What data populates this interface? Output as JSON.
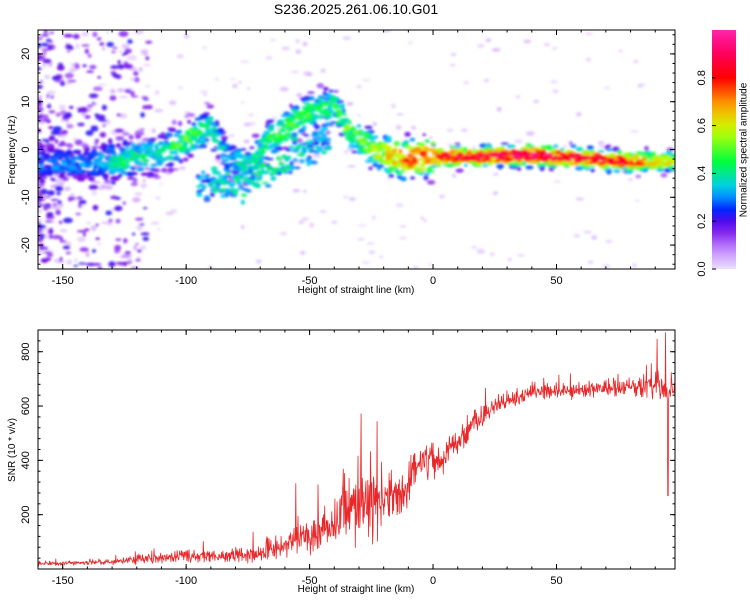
{
  "title": "S236.2025.261.06.10.G01",
  "chart_data": [
    {
      "type": "heatmap",
      "xlabel": "Height of straight line (km)",
      "ylabel": "Frequency (Hz)",
      "xlim": [
        -160,
        98
      ],
      "ylim": [
        -25,
        25
      ],
      "xticks": [
        -150,
        -100,
        -50,
        0,
        50
      ],
      "yticks": [
        -20,
        -10,
        0,
        10,
        20
      ],
      "xtick_labels": [
        "-150",
        "-100",
        "-50",
        "0",
        "50"
      ],
      "ytick_labels": [
        "-20",
        "-10",
        "0",
        "10",
        "20"
      ],
      "colorbar": {
        "label": "Normalized spectral amplitude",
        "range": [
          0,
          1
        ],
        "ticks": [
          0.0,
          0.2,
          0.4,
          0.6,
          0.8
        ],
        "tick_labels": [
          "0.0",
          "0.2",
          "0.4",
          "0.6",
          "0.8"
        ]
      },
      "ridge": [
        {
          "x": -140,
          "f": -3.0,
          "a": 0.3
        },
        {
          "x": -125,
          "f": -2.0,
          "a": 0.45
        },
        {
          "x": -110,
          "f": -1.0,
          "a": 0.4
        },
        {
          "x": -100,
          "f": 2.0,
          "a": 0.5
        },
        {
          "x": -90,
          "f": 5.0,
          "a": 0.4
        },
        {
          "x": -83,
          "f": -2.0,
          "a": 0.35
        },
        {
          "x": -75,
          "f": -3.5,
          "a": 0.4
        },
        {
          "x": -68,
          "f": 1.0,
          "a": 0.45
        },
        {
          "x": -58,
          "f": 5.0,
          "a": 0.5
        },
        {
          "x": -50,
          "f": 8.0,
          "a": 0.45
        },
        {
          "x": -40,
          "f": 9.0,
          "a": 0.45
        },
        {
          "x": -34,
          "f": 4.0,
          "a": 0.5
        },
        {
          "x": -25,
          "f": 0.0,
          "a": 0.55
        },
        {
          "x": -12,
          "f": -2.0,
          "a": 0.75
        },
        {
          "x": 0,
          "f": -1.5,
          "a": 0.8
        },
        {
          "x": 20,
          "f": -1.5,
          "a": 0.85
        },
        {
          "x": 40,
          "f": -1.2,
          "a": 0.9
        },
        {
          "x": 60,
          "f": -1.8,
          "a": 0.85
        },
        {
          "x": 80,
          "f": -2.5,
          "a": 0.8
        },
        {
          "x": 95,
          "f": -2.5,
          "a": 0.6
        }
      ],
      "secondary_ridge": [
        {
          "x": -93,
          "f": -7.0,
          "a": 0.35
        },
        {
          "x": -75,
          "f": -6.5,
          "a": 0.4
        },
        {
          "x": -60,
          "f": -3.0,
          "a": 0.4
        },
        {
          "x": -45,
          "f": 2.0,
          "a": 0.35
        }
      ]
    },
    {
      "type": "line",
      "xlabel": "Height of straight line (km)",
      "ylabel": "SNR (10 * v/v)",
      "xlim": [
        -160,
        98
      ],
      "ylim": [
        0,
        880
      ],
      "xticks": [
        -150,
        -100,
        -50,
        0,
        50
      ],
      "yticks": [
        200,
        400,
        600,
        800
      ],
      "xtick_labels": [
        "-150",
        "-100",
        "-50",
        "0",
        "50"
      ],
      "ytick_labels": [
        "200",
        "400",
        "600",
        "800"
      ],
      "color": "#e8282a",
      "envelope": [
        {
          "x": -160,
          "mean": 20,
          "noise": 8
        },
        {
          "x": -130,
          "mean": 25,
          "noise": 12
        },
        {
          "x": -115,
          "mean": 40,
          "noise": 25
        },
        {
          "x": -100,
          "mean": 50,
          "noise": 30
        },
        {
          "x": -85,
          "mean": 45,
          "noise": 25
        },
        {
          "x": -70,
          "mean": 60,
          "noise": 40
        },
        {
          "x": -50,
          "mean": 120,
          "noise": 80
        },
        {
          "x": -40,
          "mean": 170,
          "noise": 120
        },
        {
          "x": -30,
          "mean": 250,
          "noise": 180
        },
        {
          "x": -20,
          "mean": 250,
          "noise": 150
        },
        {
          "x": -12,
          "mean": 300,
          "noise": 130
        },
        {
          "x": -5,
          "mean": 380,
          "noise": 90
        },
        {
          "x": 5,
          "mean": 420,
          "noise": 80
        },
        {
          "x": 15,
          "mean": 520,
          "noise": 60
        },
        {
          "x": 25,
          "mean": 600,
          "noise": 40
        },
        {
          "x": 40,
          "mean": 650,
          "noise": 35
        },
        {
          "x": 60,
          "mean": 660,
          "noise": 35
        },
        {
          "x": 80,
          "mean": 670,
          "noise": 45
        },
        {
          "x": 90,
          "mean": 680,
          "noise": 90
        },
        {
          "x": 98,
          "mean": 650,
          "noise": 60
        }
      ],
      "annotations": {
        "spike_max": {
          "x": 95,
          "y": 870
        },
        "spike_min": {
          "x": 95,
          "y": 270
        }
      }
    }
  ]
}
